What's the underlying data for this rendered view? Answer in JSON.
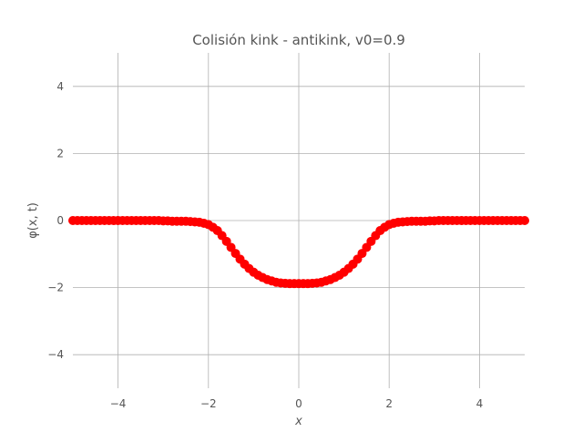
{
  "chart_data": {
    "type": "scatter",
    "title": "Colisión kink - antikink, v0=0.9",
    "xlabel": "x",
    "ylabel": "φ(x, t)",
    "xlim": [
      -5,
      5
    ],
    "ylim": [
      -5,
      5
    ],
    "xticks": [
      -4,
      -2,
      0,
      2,
      4
    ],
    "yticks": [
      -4,
      -2,
      0,
      2,
      4
    ],
    "xtick_labels": [
      "−4",
      "−2",
      "0",
      "2",
      "4"
    ],
    "ytick_labels": [
      "−4",
      "−2",
      "0",
      "2",
      "4"
    ],
    "grid": true,
    "marker_color": "#ff0000",
    "series": [
      {
        "x": [
          -5.0,
          -4.9,
          -4.8,
          -4.7,
          -4.6,
          -4.5,
          -4.4,
          -4.3,
          -4.2,
          -4.1,
          -4.0,
          -3.9,
          -3.8,
          -3.7,
          -3.6,
          -3.5,
          -3.4,
          -3.3,
          -3.2,
          -3.1,
          -3.0,
          -2.9,
          -2.8,
          -2.7,
          -2.6,
          -2.5,
          -2.4,
          -2.3,
          -2.2,
          -2.1,
          -2.0,
          -1.9,
          -1.8,
          -1.7,
          -1.6,
          -1.5,
          -1.4,
          -1.3,
          -1.2,
          -1.1,
          -1.0,
          -0.9,
          -0.8,
          -0.7,
          -0.6,
          -0.5,
          -0.4,
          -0.3,
          -0.2,
          -0.1,
          0.0,
          0.1,
          0.2,
          0.3,
          0.4,
          0.5,
          0.6,
          0.7,
          0.8,
          0.9,
          1.0,
          1.1,
          1.2,
          1.3,
          1.4,
          1.5,
          1.6,
          1.7,
          1.8,
          1.9,
          2.0,
          2.1,
          2.2,
          2.3,
          2.4,
          2.5,
          2.6,
          2.7,
          2.8,
          2.9,
          3.0,
          3.1,
          3.2,
          3.3,
          3.4,
          3.5,
          3.6,
          3.7,
          3.8,
          3.9,
          4.0,
          4.1,
          4.2,
          4.3,
          4.4,
          4.5,
          4.6,
          4.7,
          4.8,
          4.9,
          5.0
        ],
        "y": [
          0.0,
          0.0,
          0.0,
          0.0,
          0.0,
          0.0,
          0.0,
          0.0,
          0.0,
          0.0,
          0.0,
          0.0,
          0.0,
          0.0,
          0.0,
          0.0,
          0.0,
          0.0,
          0.0,
          0.0,
          -0.01,
          -0.01,
          -0.02,
          -0.02,
          -0.02,
          -0.02,
          -0.03,
          -0.04,
          -0.05,
          -0.08,
          -0.12,
          -0.2,
          -0.3,
          -0.45,
          -0.62,
          -0.8,
          -0.98,
          -1.15,
          -1.3,
          -1.43,
          -1.54,
          -1.63,
          -1.7,
          -1.76,
          -1.8,
          -1.84,
          -1.86,
          -1.87,
          -1.88,
          -1.88,
          -1.88,
          -1.88,
          -1.88,
          -1.87,
          -1.86,
          -1.84,
          -1.8,
          -1.76,
          -1.7,
          -1.63,
          -1.54,
          -1.43,
          -1.3,
          -1.15,
          -0.98,
          -0.8,
          -0.62,
          -0.45,
          -0.3,
          -0.2,
          -0.12,
          -0.08,
          -0.05,
          -0.04,
          -0.03,
          -0.02,
          -0.02,
          -0.02,
          -0.02,
          -0.01,
          -0.01,
          0.0,
          0.0,
          0.0,
          0.0,
          0.0,
          0.0,
          0.0,
          0.0,
          0.0,
          0.0,
          0.0,
          0.0,
          0.0,
          0.0,
          0.0,
          0.0,
          0.0,
          0.0,
          0.0,
          0.0
        ]
      }
    ]
  }
}
